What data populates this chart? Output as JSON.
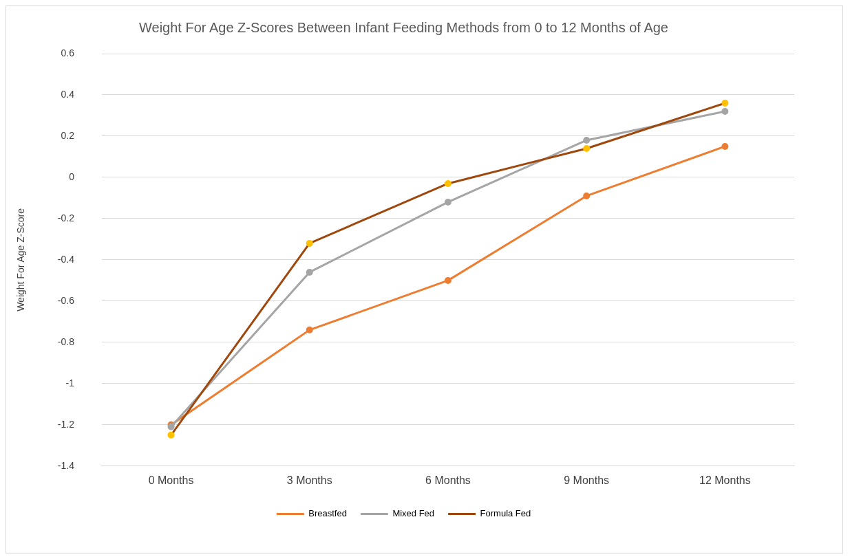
{
  "chart_data": {
    "type": "line",
    "title": "Weight For Age Z-Scores Between Infant Feeding Methods from 0 to 12 Months of Age",
    "ylabel": "Weight For Age Z-Score",
    "categories": [
      "0 Months",
      "3 Months",
      "6 Months",
      "9 Months",
      "12 Months"
    ],
    "series": [
      {
        "name": "Breastfed",
        "color": "#ed7d31",
        "values": [
          -1.2,
          -0.74,
          -0.5,
          -0.09,
          0.15
        ]
      },
      {
        "name": "Mixed Fed",
        "color": "#a5a5a5",
        "values": [
          -1.21,
          -0.46,
          -0.12,
          0.18,
          0.32
        ]
      },
      {
        "name": "Formula Fed",
        "color": "#9e480e",
        "colors": [
          "#ffc000",
          "#ffc000",
          "#ffc000",
          "#ffc000",
          "#ffc000"
        ],
        "values": [
          -1.25,
          -0.32,
          -0.03,
          0.14,
          0.36
        ]
      }
    ],
    "ylim": [
      -1.4,
      0.6
    ],
    "yticks": [
      -1.4,
      -1.2,
      -1,
      -0.8,
      -0.6,
      -0.4,
      -0.2,
      0,
      0.2,
      0.4,
      0.6
    ],
    "grid": "y",
    "legend": "bottom",
    "marker": "circle",
    "line_style": "solid"
  }
}
